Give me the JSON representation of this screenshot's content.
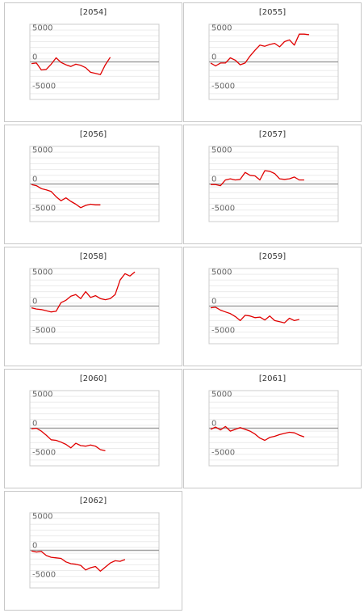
{
  "chart_data": [
    {
      "type": "line",
      "title": "[2054]",
      "ylim": [
        -6500,
        6500
      ],
      "ytick_labels": [
        "5000",
        "0",
        "-5000"
      ],
      "grid": true,
      "series": [
        {
          "color": "#e00000",
          "values": [
            -300,
            -200,
            -1400,
            -1300,
            -400,
            700,
            -100,
            -500,
            -800,
            -400,
            -600,
            -1000,
            -1800,
            -2000,
            -2200,
            -500,
            800
          ]
        }
      ]
    },
    {
      "type": "line",
      "title": "[2055]",
      "ylim": [
        -6500,
        6500
      ],
      "ytick_labels": [
        "5000",
        "0",
        "-5000"
      ],
      "grid": true,
      "series": [
        {
          "color": "#e00000",
          "values": [
            -200,
            -700,
            -200,
            -200,
            700,
            300,
            -500,
            -200,
            1000,
            2000,
            2900,
            2700,
            3000,
            3200,
            2600,
            3500,
            3800,
            2900,
            4800,
            4800,
            4700
          ]
        }
      ]
    },
    {
      "type": "line",
      "title": "[2056]",
      "ylim": [
        -6500,
        6500
      ],
      "ytick_labels": [
        "5000",
        "0",
        "-5000"
      ],
      "grid": true,
      "series": [
        {
          "color": "#e00000",
          "values": [
            -100,
            -300,
            -800,
            -1000,
            -1300,
            -2200,
            -2900,
            -2400,
            -3000,
            -3500,
            -4100,
            -3700,
            -3500,
            -3600,
            -3600
          ]
        }
      ]
    },
    {
      "type": "line",
      "title": "[2057]",
      "ylim": [
        -6500,
        6500
      ],
      "ytick_labels": [
        "5000",
        "0",
        "-5000"
      ],
      "grid": true,
      "series": [
        {
          "color": "#e00000",
          "values": [
            -100,
            -100,
            -300,
            700,
            900,
            700,
            800,
            2000,
            1500,
            1400,
            700,
            2300,
            2200,
            1800,
            900,
            800,
            900,
            1200,
            700,
            700
          ]
        }
      ]
    },
    {
      "type": "line",
      "title": "[2058]",
      "ylim": [
        -6500,
        6500
      ],
      "ytick_labels": [
        "5000",
        "0",
        "-5000"
      ],
      "grid": true,
      "series": [
        {
          "color": "#e00000",
          "values": [
            -300,
            -500,
            -600,
            -800,
            -1000,
            -900,
            600,
            1000,
            1700,
            2000,
            1300,
            2500,
            1500,
            1800,
            1300,
            1100,
            1300,
            2000,
            4500,
            5600,
            5200,
            5900
          ]
        }
      ]
    },
    {
      "type": "line",
      "title": "[2059]",
      "ylim": [
        -6500,
        6500
      ],
      "ytick_labels": [
        "5000",
        "0",
        "-5000"
      ],
      "grid": true,
      "series": [
        {
          "color": "#e00000",
          "values": [
            -300,
            -200,
            -700,
            -1000,
            -1300,
            -1800,
            -2500,
            -1600,
            -1700,
            -2000,
            -1900,
            -2400,
            -1700,
            -2500,
            -2700,
            -2900,
            -2100,
            -2500,
            -2300
          ]
        }
      ]
    },
    {
      "type": "line",
      "title": "[2060]",
      "ylim": [
        -6500,
        6500
      ],
      "ytick_labels": [
        "5000",
        "0",
        "-5000"
      ],
      "grid": true,
      "series": [
        {
          "color": "#e00000",
          "values": [
            -100,
            0,
            -500,
            -1200,
            -2000,
            -2100,
            -2400,
            -2800,
            -3400,
            -2600,
            -3000,
            -3100,
            -2900,
            -3100,
            -3700,
            -3900
          ]
        }
      ]
    },
    {
      "type": "line",
      "title": "[2061]",
      "ylim": [
        -6500,
        6500
      ],
      "ytick_labels": [
        "5000",
        "0",
        "-5000"
      ],
      "grid": true,
      "series": [
        {
          "color": "#e00000",
          "values": [
            -200,
            200,
            -300,
            300,
            -500,
            -200,
            100,
            -200,
            -500,
            -1000,
            -1700,
            -2100,
            -1600,
            -1400,
            -1100,
            -900,
            -700,
            -800,
            -1200,
            -1500
          ]
        }
      ]
    },
    {
      "type": "line",
      "title": "[2062]",
      "ylim": [
        -6500,
        6500
      ],
      "ytick_labels": [
        "5000",
        "0",
        "-5000"
      ],
      "grid": true,
      "series": [
        {
          "color": "#e00000",
          "values": [
            -100,
            -300,
            -200,
            -900,
            -1200,
            -1300,
            -1400,
            -2000,
            -2300,
            -2400,
            -2600,
            -3400,
            -3000,
            -2800,
            -3600,
            -2900,
            -2200,
            -1800,
            -1900,
            -1600
          ]
        }
      ]
    }
  ]
}
